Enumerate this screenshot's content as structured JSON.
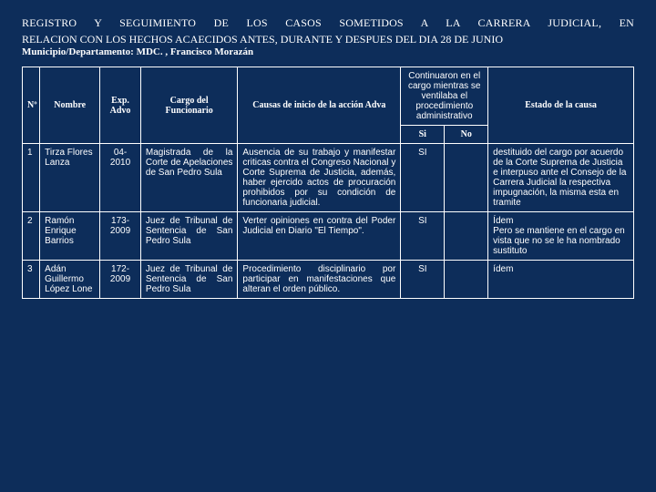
{
  "header": {
    "title_line1": "REGISTRO Y SEGUIMIENTO DE LOS CASOS SOMETIDOS A LA CARRERA JUDICIAL, EN",
    "title_line2": "RELACION CON LOS HECHOS ACAECIDOS ANTES, DURANTE Y DESPUES DEL DIA 28 DE JUNIO",
    "subtitle": "Municipio/Departamento: MDC. , Francisco Morazán"
  },
  "columns": {
    "n": "Nº",
    "nombre": "Nombre",
    "exp": "Exp. Advo",
    "cargo": "Cargo del Funcionario",
    "causas": "Causas de inicio de la acción Adva",
    "continuaron": "Continuaron en el cargo mientras se ventilaba el procedimiento administrativo",
    "si": "Si",
    "no": "No",
    "estado": "Estado de la causa"
  },
  "rows": [
    {
      "n": "1",
      "nombre": "Tirza Flores Lanza",
      "exp": "04-2010",
      "cargo": "Magistrada de la Corte de Apelaciones de San Pedro Sula",
      "causas": "Ausencia de su trabajo y manifestar criticas contra el Congreso Nacional y Corte Suprema de Justicia, además, haber ejercido actos de procuración prohibidos por su condición de funcionaria judicial.",
      "si": "SI",
      "no": "",
      "estado": "destituido del cargo por acuerdo de  la Corte Suprema de Justicia e interpuso ante el Consejo de la Carrera Judicial la respectiva impugnación, la misma esta en tramite"
    },
    {
      "n": "2",
      "nombre": "Ramón Enrique Barrios",
      "exp": "173-2009",
      "cargo": "Juez de Tribunal de Sentencia de San Pedro Sula",
      "causas": "Verter opiniones en contra del Poder Judicial en Diario \"El Tiempo\".",
      "si": "SI",
      "no": "",
      "estado": "Ídem\nPero se mantiene en el cargo en vista que no se le ha nombrado sustituto"
    },
    {
      "n": "3",
      "nombre": "Adán Guillermo López Lone",
      "exp": "172-2009",
      "cargo": "Juez de Tribunal de Sentencia de San Pedro Sula",
      "causas": "Procedimiento disciplinario por participar en manifestaciones que alteran el orden público.",
      "si": "SI",
      "no": "",
      "estado": "ídem"
    }
  ]
}
